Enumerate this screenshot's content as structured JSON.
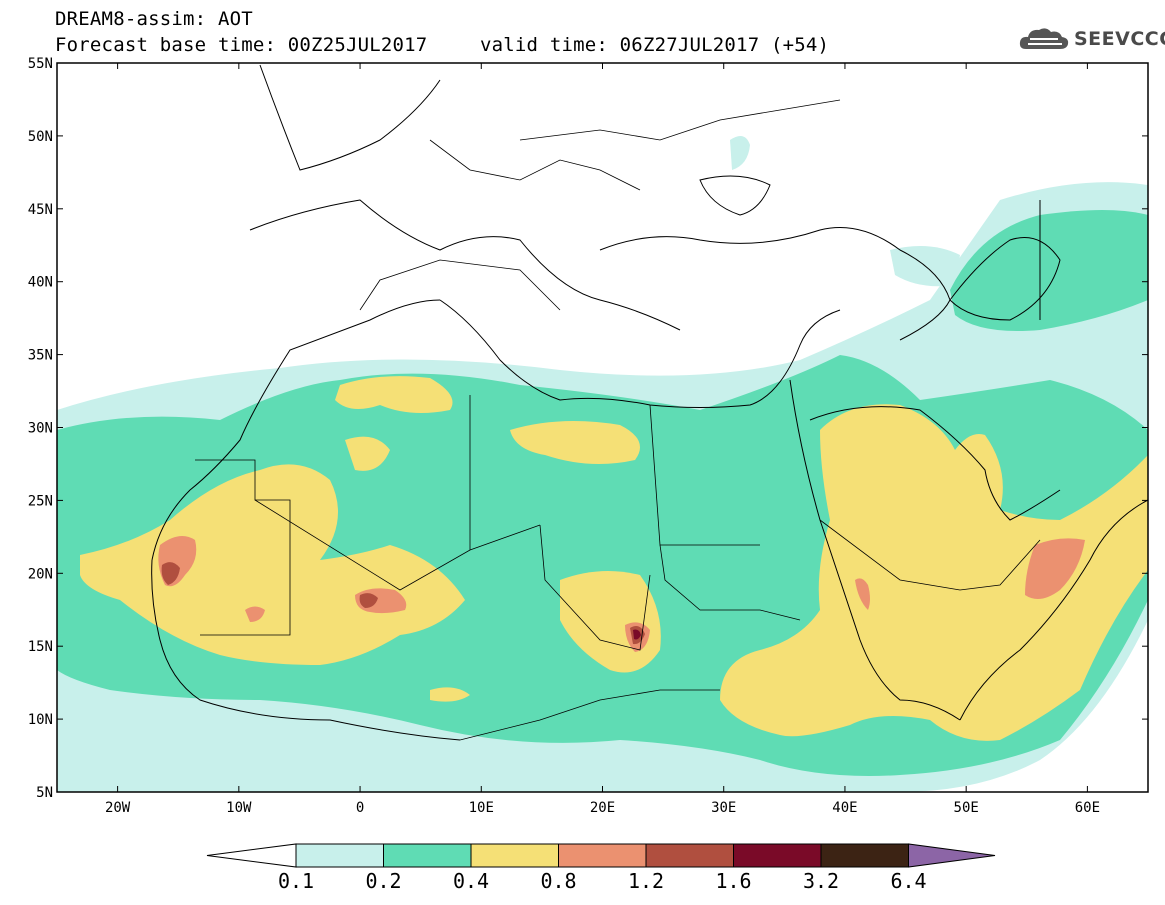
{
  "header": {
    "line1": "DREAM8-assim: AOT",
    "line2": "Forecast base time: 00Z25JUL2017",
    "line3": "valid time: 06Z27JUL2017 (+54)"
  },
  "brand": {
    "text": "SEEVCCC",
    "icon": "cloud-icon"
  },
  "map": {
    "lon_range": [
      -25,
      65
    ],
    "lat_range": [
      5,
      55
    ],
    "lat_ticks": [
      "5N",
      "10N",
      "15N",
      "20N",
      "25N",
      "30N",
      "35N",
      "40N",
      "45N",
      "50N",
      "55N"
    ],
    "lon_ticks": [
      "20W",
      "10W",
      "0",
      "10E",
      "20E",
      "30E",
      "40E",
      "50E",
      "60E"
    ]
  },
  "colorbar": {
    "labels": [
      "0.1",
      "0.2",
      "0.4",
      "0.8",
      "1.2",
      "1.6",
      "3.2",
      "6.4"
    ],
    "colors": [
      "#c8f0eb",
      "#5fdcb4",
      "#f5e076",
      "#eb9170",
      "#b04f3f",
      "#7a0a28",
      "#3c2314",
      "#8c65a6"
    ]
  }
}
